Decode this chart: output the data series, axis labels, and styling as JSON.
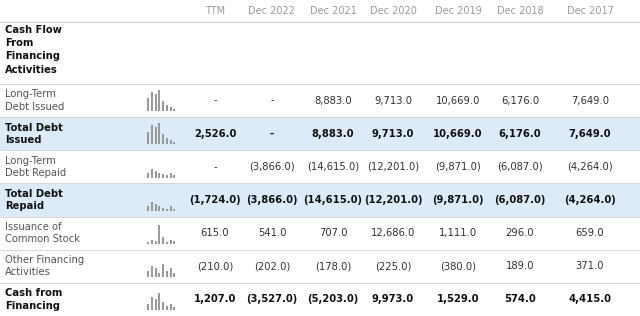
{
  "columns": [
    "TTM",
    "Dec 2022",
    "Dec 2021",
    "Dec 2020",
    "Dec 2019",
    "Dec 2018",
    "Dec 2017"
  ],
  "rows": [
    {
      "label": "Cash Flow\nFrom\nFinancing\nActivities",
      "bold": true,
      "values": [
        "",
        "",
        "",
        "",
        "",
        "",
        ""
      ],
      "background": "#ffffff",
      "has_sparkline": false,
      "tall": true
    },
    {
      "label": "Long-Term\nDebt Issued",
      "bold": false,
      "values": [
        "-",
        "-",
        "8,883.0",
        "9,713.0",
        "10,669.0",
        "6,176.0",
        "7,649.0"
      ],
      "background": "#ffffff",
      "has_sparkline": true,
      "tall": false
    },
    {
      "label": "Total Debt\nIssued",
      "bold": true,
      "values": [
        "2,526.0",
        "-",
        "8,883.0",
        "9,713.0",
        "10,669.0",
        "6,176.0",
        "7,649.0"
      ],
      "background": "#ddeaf8",
      "has_sparkline": true,
      "tall": false
    },
    {
      "label": "Long-Term\nDebt Repaid",
      "bold": false,
      "values": [
        "-",
        "(3,866.0)",
        "(14,615.0)",
        "(12,201.0)",
        "(9,871.0)",
        "(6,087.0)",
        "(4,264.0)"
      ],
      "background": "#ffffff",
      "has_sparkline": true,
      "tall": false
    },
    {
      "label": "Total Debt\nRepaid",
      "bold": true,
      "values": [
        "(1,724.0)",
        "(3,866.0)",
        "(14,615.0)",
        "(12,201.0)",
        "(9,871.0)",
        "(6,087.0)",
        "(4,264.0)"
      ],
      "background": "#ddeaf8",
      "has_sparkline": true,
      "tall": false
    },
    {
      "label": "Issuance of\nCommon Stock",
      "bold": false,
      "values": [
        "615.0",
        "541.0",
        "707.0",
        "12,686.0",
        "1,111.0",
        "296.0",
        "659.0"
      ],
      "background": "#ffffff",
      "has_sparkline": true,
      "tall": false
    },
    {
      "label": "Other Financing\nActivities",
      "bold": false,
      "values": [
        "(210.0)",
        "(202.0)",
        "(178.0)",
        "(225.0)",
        "(380.0)",
        "189.0",
        "371.0"
      ],
      "background": "#ffffff",
      "has_sparkline": true,
      "tall": false
    },
    {
      "label": "Cash from\nFinancing",
      "bold": true,
      "values": [
        "1,207.0",
        "(3,527.0)",
        "(5,203.0)",
        "9,973.0",
        "1,529.0",
        "574.0",
        "4,415.0"
      ],
      "background": "#ffffff",
      "has_sparkline": true,
      "tall": false
    }
  ],
  "header_text_color": "#999999",
  "row_text_color": "#333333",
  "bold_text_color": "#111111",
  "label_normal_color": "#555555",
  "divider_color": "#d0d0d0",
  "font_size_header": 7.0,
  "font_size_row": 7.2,
  "fig_width": 6.4,
  "fig_height": 3.16
}
